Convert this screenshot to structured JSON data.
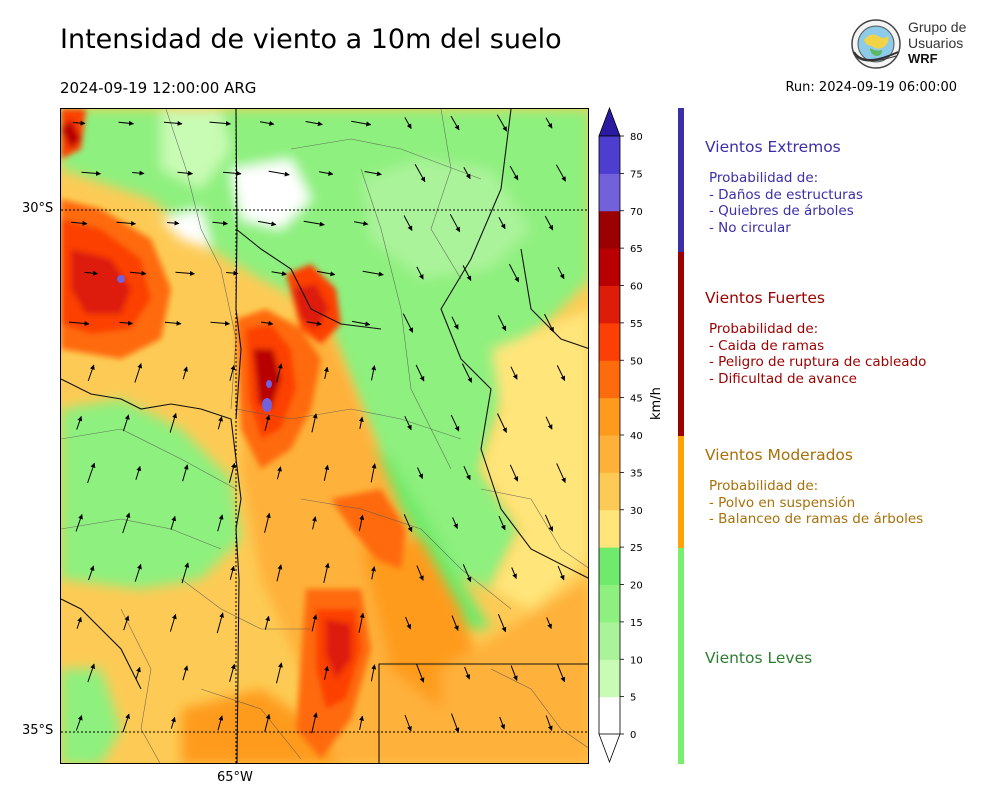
{
  "header": {
    "title": "Intensidad de viento a 10m del suelo",
    "valid_time": "2024-09-19 12:00:00 ARG",
    "run": "Run: 2024-09-19 06:00:00"
  },
  "logo": {
    "line1": "Grupo de",
    "line2": "Usuarios",
    "line3": "WRF"
  },
  "map": {
    "lat_labels": [
      "30°S",
      "35°S"
    ],
    "lon_labels": [
      "65°W"
    ]
  },
  "colorbar": {
    "unit": "km/h",
    "ticks": [
      "0",
      "5",
      "10",
      "15",
      "20",
      "25",
      "30",
      "35",
      "40",
      "45",
      "50",
      "55",
      "60",
      "65",
      "70",
      "75",
      "80"
    ],
    "colors": [
      "#ffffff",
      "#c8fbb4",
      "#aaf39a",
      "#8ef07e",
      "#70ea6a",
      "#ffe57a",
      "#fdcb55",
      "#feb13a",
      "#fe9b1c",
      "#fe6b0c",
      "#fc3f05",
      "#dd1d08",
      "#b80003",
      "#9a0000",
      "#7361dc",
      "#4d3ed0",
      "#3622b0",
      "#2b1ba2"
    ]
  },
  "legend": {
    "categories": [
      {
        "title": "Vientos Extremos",
        "color": "#3a2fa8",
        "heading": "Probabilidad de:",
        "items": [
          "- Daños de estructuras",
          "- Quiebres de árboles",
          "- No circular"
        ]
      },
      {
        "title": "Vientos Fuertes",
        "color": "#9b0000",
        "heading": "Probabilidad de:",
        "items": [
          "- Caida de ramas",
          "- Peligro de ruptura de cableado",
          "- Dificultad de avance"
        ]
      },
      {
        "title": "Vientos Moderados",
        "color": "#a8700a",
        "bar_color": "#fea208",
        "heading": "Probabilidad de:",
        "items": [
          "- Polvo en suspensión",
          "- Balanceo de ramas de árboles"
        ]
      },
      {
        "title": "Vientos Leves",
        "color": "#2e7d32",
        "bar_color": "#7aee6e",
        "heading": "",
        "items": []
      }
    ]
  }
}
